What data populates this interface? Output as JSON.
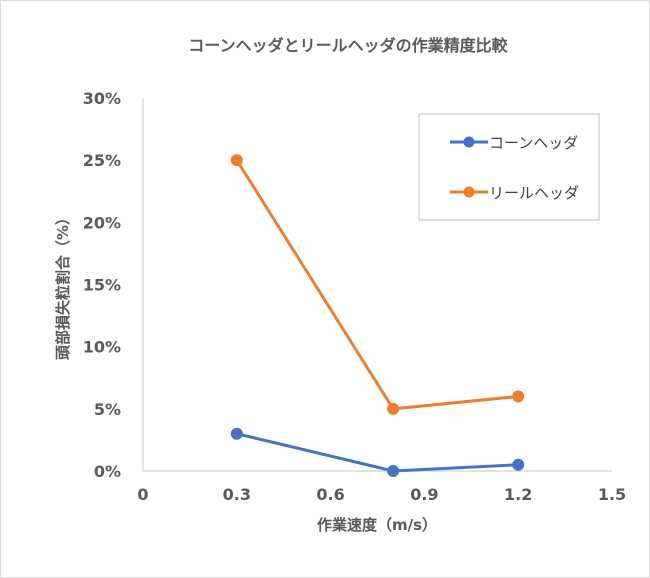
{
  "chart_data": {
    "type": "scatter",
    "title": "コーンヘッダとリールヘッダの作業精度比較",
    "xlabel": "作業速度（m/s）",
    "ylabel": "頭部損失粒割合（%）",
    "xlim": [
      0,
      1.5
    ],
    "ylim": [
      0,
      0.3
    ],
    "x_ticks": [
      0,
      0.3,
      0.6,
      0.9,
      1.2,
      1.5
    ],
    "x_tick_labels": [
      "0",
      "0.3",
      "0.6",
      "0.9",
      "1.2",
      "1.5"
    ],
    "y_ticks": [
      0,
      0.05,
      0.1,
      0.15,
      0.2,
      0.25,
      0.3
    ],
    "y_tick_labels": [
      "0%",
      "5%",
      "10%",
      "15%",
      "20%",
      "25%",
      "30%"
    ],
    "grid": false,
    "legend_position": "top-right",
    "series": [
      {
        "name": "コーンヘッダ",
        "color": "#4472C4",
        "x": [
          0.3,
          0.8,
          1.2
        ],
        "y": [
          0.03,
          0.0,
          0.005
        ]
      },
      {
        "name": "リールヘッダ",
        "color": "#ED7D31",
        "x": [
          0.3,
          0.8,
          1.2
        ],
        "y": [
          0.25,
          0.05,
          0.06
        ]
      }
    ]
  }
}
